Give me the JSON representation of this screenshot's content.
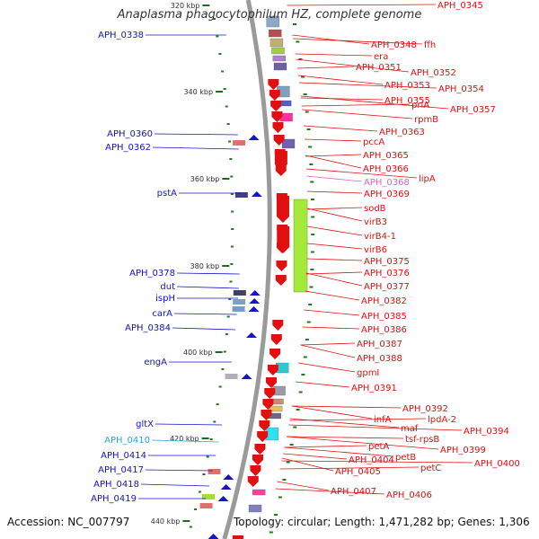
{
  "title": "Anaplasma phagocytophilum HZ, complete genome",
  "footer": {
    "accession": "Accession: NC_007797",
    "topology": "Topology: circular; Length: 1,471,282 bp; Genes: 1,306"
  },
  "colors": {
    "plus": "#1414c8",
    "minus": "#e01010",
    "highlight": "#2aa7d8",
    "pink": "#e860c8"
  },
  "ticks": [
    "320 kbp",
    "340 kbp",
    "360 kbp",
    "380 kbp",
    "400 kbp",
    "420 kbp",
    "440 kbp"
  ],
  "left_labels": [
    {
      "text": "APH_0338",
      "color": "plus"
    },
    {
      "text": "APH_0360",
      "color": "plus"
    },
    {
      "text": "APH_0362",
      "color": "plus"
    },
    {
      "text": "pstA",
      "color": "plus"
    },
    {
      "text": "APH_0378",
      "color": "plus"
    },
    {
      "text": "dut",
      "color": "plus"
    },
    {
      "text": "ispH",
      "color": "plus"
    },
    {
      "text": "carA",
      "color": "plus"
    },
    {
      "text": "APH_0384",
      "color": "plus"
    },
    {
      "text": "engA",
      "color": "plus"
    },
    {
      "text": "gltX",
      "color": "plus"
    },
    {
      "text": "APH_0410",
      "color": "highlight"
    },
    {
      "text": "APH_0414",
      "color": "plus"
    },
    {
      "text": "APH_0417",
      "color": "plus"
    },
    {
      "text": "APH_0418",
      "color": "plus"
    },
    {
      "text": "APH_0419",
      "color": "plus"
    }
  ],
  "right_labels": [
    {
      "text": "APH_0345",
      "color": "minus"
    },
    {
      "text": "APH_0348",
      "color": "minus"
    },
    {
      "text": "ffh",
      "color": "minus"
    },
    {
      "text": "era",
      "color": "minus"
    },
    {
      "text": "APH_0351",
      "color": "minus"
    },
    {
      "text": "APH_0352",
      "color": "minus"
    },
    {
      "text": "APH_0353",
      "color": "minus"
    },
    {
      "text": "APH_0354",
      "color": "minus"
    },
    {
      "text": "APH_0355",
      "color": "minus"
    },
    {
      "text": "priA",
      "color": "minus"
    },
    {
      "text": "APH_0357",
      "color": "minus"
    },
    {
      "text": "rpmB",
      "color": "minus"
    },
    {
      "text": "APH_0363",
      "color": "minus"
    },
    {
      "text": "pccA",
      "color": "minus"
    },
    {
      "text": "APH_0365",
      "color": "minus"
    },
    {
      "text": "APH_0366",
      "color": "minus"
    },
    {
      "text": "lipA",
      "color": "minus"
    },
    {
      "text": "APH_0368",
      "color": "pink"
    },
    {
      "text": "APH_0369",
      "color": "minus"
    },
    {
      "text": "sodB",
      "color": "minus"
    },
    {
      "text": "virB3",
      "color": "minus"
    },
    {
      "text": "virB4-1",
      "color": "minus"
    },
    {
      "text": "virB6",
      "color": "minus"
    },
    {
      "text": "APH_0375",
      "color": "minus"
    },
    {
      "text": "APH_0376",
      "color": "minus"
    },
    {
      "text": "APH_0377",
      "color": "minus"
    },
    {
      "text": "APH_0382",
      "color": "minus"
    },
    {
      "text": "APH_0385",
      "color": "minus"
    },
    {
      "text": "APH_0386",
      "color": "minus"
    },
    {
      "text": "APH_0387",
      "color": "minus"
    },
    {
      "text": "APH_0388",
      "color": "minus"
    },
    {
      "text": "gpmI",
      "color": "minus"
    },
    {
      "text": "APH_0391",
      "color": "minus"
    },
    {
      "text": "APH_0392",
      "color": "minus"
    },
    {
      "text": "lpdA-2",
      "color": "minus"
    },
    {
      "text": "infA",
      "color": "minus"
    },
    {
      "text": "maf",
      "color": "minus"
    },
    {
      "text": "APH_0394",
      "color": "minus"
    },
    {
      "text": "tsf-rpsB",
      "color": "minus"
    },
    {
      "text": "petA",
      "color": "minus"
    },
    {
      "text": "APH_0399",
      "color": "minus"
    },
    {
      "text": "petB",
      "color": "minus"
    },
    {
      "text": "APH_0404",
      "color": "minus"
    },
    {
      "text": "APH_0400",
      "color": "minus"
    },
    {
      "text": "petC",
      "color": "minus"
    },
    {
      "text": "APH_0405",
      "color": "minus"
    },
    {
      "text": "APH_0407",
      "color": "minus"
    },
    {
      "text": "APH_0406",
      "color": "minus"
    }
  ]
}
